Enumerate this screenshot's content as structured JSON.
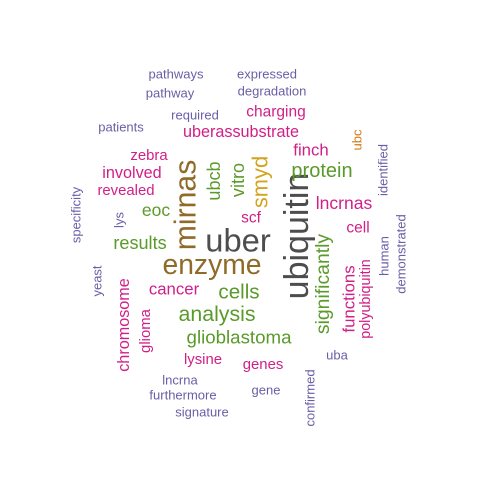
{
  "palette": {
    "purple": "#6a5ea6",
    "magenta": "#d11f87",
    "green": "#5a9a2a",
    "orange": "#d27a12",
    "gold": "#d4a41f",
    "brown": "#8f6a28",
    "gray": "#4d4d4d"
  },
  "words": [
    {
      "text": "ubiquitin",
      "weight": 100,
      "color": "gray"
    },
    {
      "text": "uber",
      "weight": 96,
      "color": "gray"
    },
    {
      "text": "mirnas",
      "weight": 88,
      "color": "brown"
    },
    {
      "text": "enzyme",
      "weight": 82,
      "color": "brown"
    },
    {
      "text": "smyd",
      "weight": 62,
      "color": "gold"
    },
    {
      "text": "analysis",
      "weight": 60,
      "color": "green"
    },
    {
      "text": "cells",
      "weight": 58,
      "color": "green"
    },
    {
      "text": "protein",
      "weight": 56,
      "color": "green"
    },
    {
      "text": "significantly",
      "weight": 54,
      "color": "green"
    },
    {
      "text": "glioblastoma",
      "weight": 52,
      "color": "green"
    },
    {
      "text": "results",
      "weight": 50,
      "color": "green"
    },
    {
      "text": "vitro",
      "weight": 50,
      "color": "green"
    },
    {
      "text": "ubcb",
      "weight": 50,
      "color": "green"
    },
    {
      "text": "eoc",
      "weight": 48,
      "color": "green"
    },
    {
      "text": "lncrnas",
      "weight": 48,
      "color": "magenta"
    },
    {
      "text": "cancer",
      "weight": 46,
      "color": "magenta"
    },
    {
      "text": "finch",
      "weight": 46,
      "color": "magenta"
    },
    {
      "text": "functions",
      "weight": 46,
      "color": "magenta"
    },
    {
      "text": "chromosome",
      "weight": 44,
      "color": "magenta"
    },
    {
      "text": "uberassubstrate",
      "weight": 44,
      "color": "magenta"
    },
    {
      "text": "involved",
      "weight": 44,
      "color": "magenta"
    },
    {
      "text": "charging",
      "weight": 42,
      "color": "magenta"
    },
    {
      "text": "scf",
      "weight": 42,
      "color": "magenta"
    },
    {
      "text": "cell",
      "weight": 42,
      "color": "magenta"
    },
    {
      "text": "revealed",
      "weight": 40,
      "color": "magenta"
    },
    {
      "text": "zebra",
      "weight": 40,
      "color": "magenta"
    },
    {
      "text": "lysine",
      "weight": 40,
      "color": "magenta"
    },
    {
      "text": "genes",
      "weight": 40,
      "color": "magenta"
    },
    {
      "text": "glioma",
      "weight": 40,
      "color": "magenta"
    },
    {
      "text": "polyubiquitin",
      "weight": 38,
      "color": "magenta"
    },
    {
      "text": "ubc",
      "weight": 34,
      "color": "orange"
    },
    {
      "text": "pathways",
      "weight": 34,
      "color": "purple"
    },
    {
      "text": "expressed",
      "weight": 34,
      "color": "purple"
    },
    {
      "text": "pathway",
      "weight": 34,
      "color": "purple"
    },
    {
      "text": "degradation",
      "weight": 34,
      "color": "purple"
    },
    {
      "text": "required",
      "weight": 34,
      "color": "purple"
    },
    {
      "text": "patients",
      "weight": 34,
      "color": "purple"
    },
    {
      "text": "identified",
      "weight": 34,
      "color": "purple"
    },
    {
      "text": "specificity",
      "weight": 34,
      "color": "purple"
    },
    {
      "text": "lys",
      "weight": 34,
      "color": "purple"
    },
    {
      "text": "yeast",
      "weight": 34,
      "color": "purple"
    },
    {
      "text": "human",
      "weight": 34,
      "color": "purple"
    },
    {
      "text": "demonstrated",
      "weight": 34,
      "color": "purple"
    },
    {
      "text": "uba",
      "weight": 34,
      "color": "purple"
    },
    {
      "text": "lncrna",
      "weight": 34,
      "color": "purple"
    },
    {
      "text": "furthermore",
      "weight": 34,
      "color": "purple"
    },
    {
      "text": "gene",
      "weight": 34,
      "color": "purple"
    },
    {
      "text": "confirmed",
      "weight": 34,
      "color": "purple"
    },
    {
      "text": "signature",
      "weight": 34,
      "color": "purple"
    }
  ]
}
